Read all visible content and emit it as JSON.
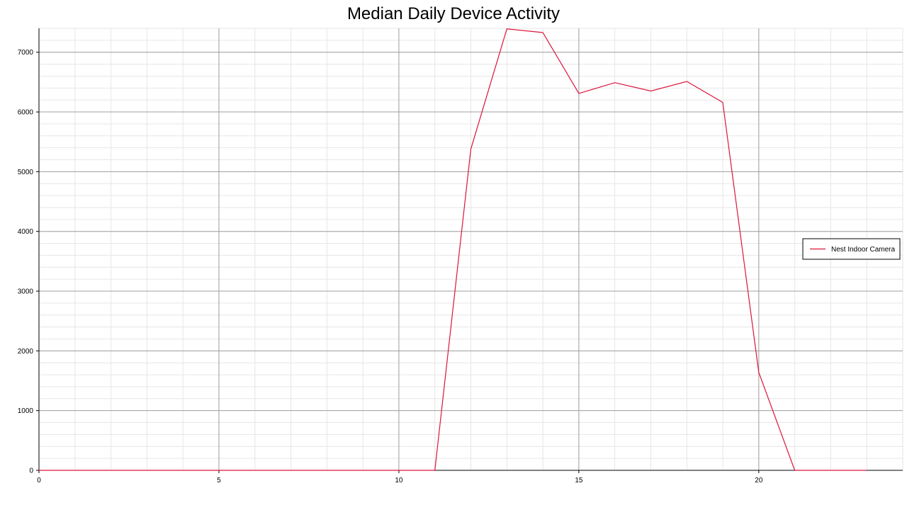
{
  "chart_data": {
    "type": "line",
    "title": "Median Daily Device Activity",
    "xlabel": "",
    "ylabel": "",
    "xlim": [
      0,
      24
    ],
    "ylim": [
      0,
      7400
    ],
    "x_ticks": [
      0,
      5,
      10,
      15,
      20
    ],
    "y_ticks": [
      0,
      1000,
      2000,
      3000,
      4000,
      5000,
      6000,
      7000
    ],
    "grid": true,
    "legend_position": "right",
    "series": [
      {
        "name": "Nest Indoor Camera",
        "color": "#dc143c",
        "x": [
          0,
          1,
          2,
          3,
          4,
          5,
          6,
          7,
          8,
          9,
          10,
          11,
          12,
          13,
          14,
          15,
          16,
          17,
          18,
          19,
          20,
          21,
          22,
          23
        ],
        "values": [
          0,
          0,
          0,
          0,
          0,
          0,
          0,
          0,
          0,
          0,
          0,
          0,
          5380,
          7390,
          7330,
          6310,
          6490,
          6350,
          6510,
          6160,
          1640,
          0,
          0,
          0
        ]
      }
    ]
  }
}
